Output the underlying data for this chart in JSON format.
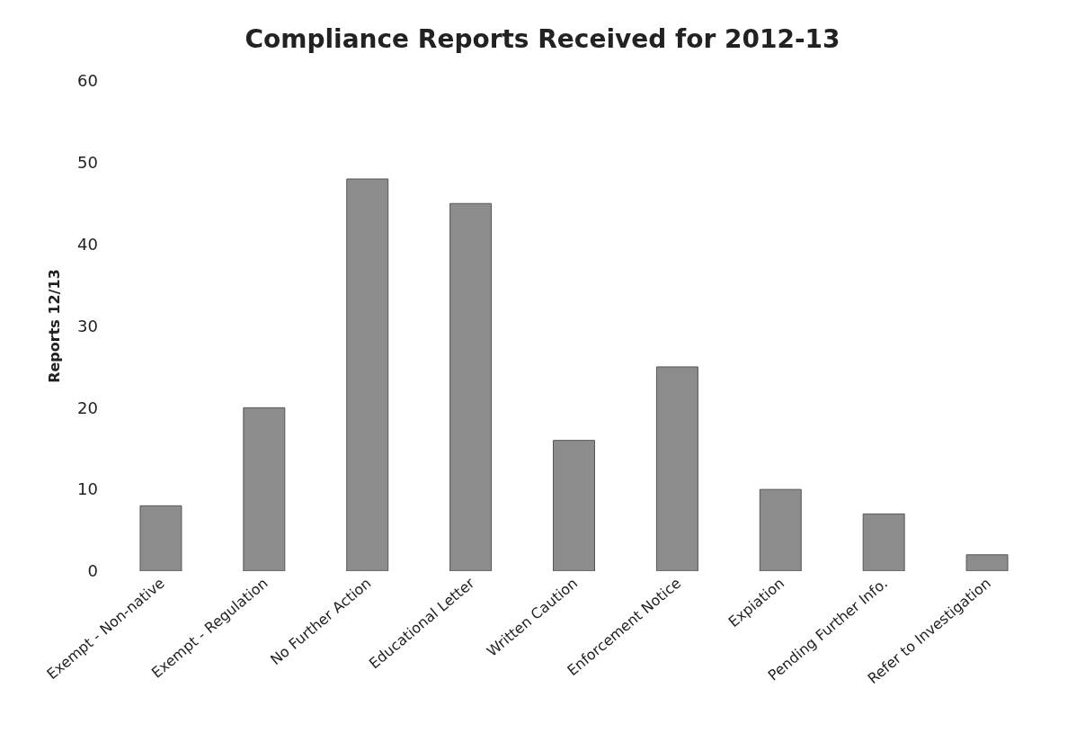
{
  "chart_data": {
    "type": "bar",
    "title": "Compliance Reports Received for 2012-13",
    "ylabel": "Reports 12/13",
    "categories": [
      "Exempt - Non-native",
      "Exempt - Regulation",
      "No Further Action",
      "Educational Letter",
      "Written Caution",
      "Enforcement Notice",
      "Expiation",
      "Pending Further Info.",
      "Refer to Investigation"
    ],
    "values": [
      8,
      20,
      48,
      45,
      16,
      25,
      10,
      7,
      2
    ],
    "color": "#8c8c8c",
    "ylim": [
      0,
      60
    ],
    "yticks": [
      0,
      10,
      20,
      30,
      40,
      50,
      60
    ],
    "grid": false
  }
}
